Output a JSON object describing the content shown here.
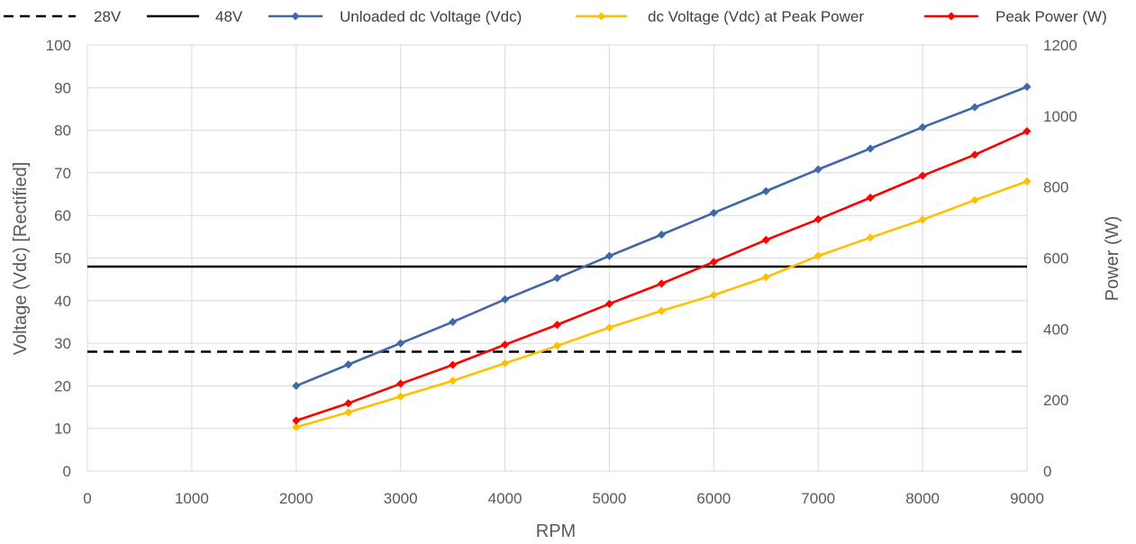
{
  "chart_data": {
    "type": "line",
    "xlabel": "RPM",
    "ylabel_left": "Voltage (Vdc) [Rectified]",
    "ylabel_right": "Power (W)",
    "xlim": [
      0,
      9000
    ],
    "xticks": [
      0,
      1000,
      2000,
      3000,
      4000,
      5000,
      6000,
      7000,
      8000,
      9000
    ],
    "ylim_left": [
      0,
      100
    ],
    "yticks_left": [
      0,
      10,
      20,
      30,
      40,
      50,
      60,
      70,
      80,
      90,
      100
    ],
    "ylim_right": [
      0,
      1200
    ],
    "yticks_right": [
      0,
      200,
      400,
      600,
      800,
      1000,
      1200
    ],
    "grid": true,
    "legend_position": "top",
    "x": [
      2000,
      2500,
      3000,
      3500,
      4000,
      4500,
      5000,
      5500,
      6000,
      6500,
      7000,
      7500,
      8000,
      8500,
      9000
    ],
    "reference_lines": [
      {
        "name": "28V",
        "value": 28,
        "color": "#000000",
        "style": "dashed"
      },
      {
        "name": "48V",
        "value": 48,
        "color": "#000000",
        "style": "solid"
      }
    ],
    "series": [
      {
        "name": "Unloaded dc Voltage (Vdc)",
        "axis": "left",
        "color": "#4068A8",
        "values": [
          20,
          25,
          30,
          35,
          40.3,
          45.3,
          50.5,
          55.5,
          60.6,
          65.7,
          70.8,
          75.7,
          80.7,
          85.4,
          90.2
        ]
      },
      {
        "name": "dc Voltage (Vdc) at Peak Power",
        "axis": "left",
        "color": "#FFC000",
        "values": [
          10.3,
          13.8,
          17.5,
          21.2,
          25.3,
          29.4,
          33.7,
          37.6,
          41.3,
          45.5,
          50.5,
          54.8,
          59,
          63.6,
          68
        ]
      },
      {
        "name": "Peak Power (W)",
        "axis": "right",
        "color": "#FF0000",
        "values": [
          142,
          191,
          246,
          299,
          356,
          412,
          471,
          528,
          589,
          651,
          709,
          770,
          832,
          891,
          957
        ]
      }
    ]
  }
}
